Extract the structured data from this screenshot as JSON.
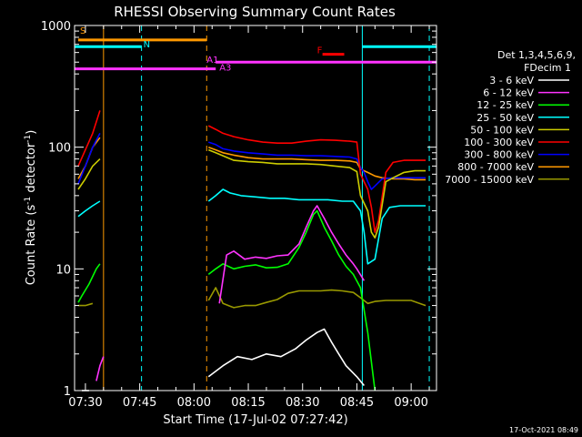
{
  "chart_data": {
    "type": "line",
    "title": "RHESSI Observing Summary Count Rates",
    "xlabel": "Start Time (17-Jul-02 07:27:42)",
    "ylabel_main": "Count Rate (s",
    "ylabel_sup1": "-1",
    "ylabel_mid": " detector",
    "ylabel_sup2": "-1",
    "ylabel_end": ")",
    "y_scale": "log",
    "ylim": [
      1,
      1000
    ],
    "xlim_minutes": [
      -3,
      97
    ],
    "x_ticks": [
      {
        "label": "07:30",
        "value": 0
      },
      {
        "label": "07:45",
        "value": 15
      },
      {
        "label": "08:00",
        "value": 30
      },
      {
        "label": "08:15",
        "value": 45
      },
      {
        "label": "08:30",
        "value": 60
      },
      {
        "label": "08:45",
        "value": 75
      },
      {
        "label": "09:00",
        "value": 90
      }
    ],
    "y_ticks": [
      {
        "label": "1",
        "value": 1
      },
      {
        "label": "10",
        "value": 10
      },
      {
        "label": "100",
        "value": 100
      },
      {
        "label": "1000",
        "value": 1000
      }
    ],
    "legend": {
      "header1": "Det 1,3,4,5,6,9,",
      "header2": "FDecim 1",
      "placement": "right"
    },
    "series": [
      {
        "name": "3 - 6 keV",
        "color": "#ffffff",
        "segments": [
          [
            [
              -1,
              1
            ],
            [
              0,
              1
            ],
            [
              1,
              1
            ]
          ],
          [
            [
              34,
              1.3
            ],
            [
              38,
              1.6
            ],
            [
              42,
              1.9
            ],
            [
              46,
              1.8
            ],
            [
              50,
              2.0
            ],
            [
              54,
              1.9
            ],
            [
              58,
              2.2
            ],
            [
              61,
              2.6
            ],
            [
              64,
              3.0
            ],
            [
              66,
              3.2
            ],
            [
              68,
              2.5
            ],
            [
              70,
              2.0
            ],
            [
              72,
              1.6
            ],
            [
              75,
              1.3
            ],
            [
              77,
              1.1
            ]
          ]
        ]
      },
      {
        "name": "6 - 12 keV",
        "color": "#ff33ff",
        "segments": [
          [
            [
              3,
              1.2
            ],
            [
              4,
              1.6
            ],
            [
              5,
              1.9
            ]
          ],
          [
            [
              37,
              5.2
            ],
            [
              39,
              13
            ],
            [
              41,
              14
            ],
            [
              44,
              12
            ],
            [
              47,
              12.5
            ],
            [
              50,
              12.2
            ],
            [
              53,
              12.8
            ],
            [
              56,
              13
            ],
            [
              59,
              16
            ],
            [
              61,
              22
            ],
            [
              63,
              30
            ],
            [
              64,
              33
            ],
            [
              66,
              26
            ],
            [
              68,
              20
            ],
            [
              70,
              16
            ],
            [
              72,
              13
            ],
            [
              74,
              11
            ],
            [
              75,
              10
            ],
            [
              77,
              8
            ]
          ]
        ]
      },
      {
        "name": "12 - 25 keV",
        "color": "#00ff00",
        "segments": [
          [
            [
              -2,
              5.3
            ],
            [
              -1,
              6
            ],
            [
              1,
              7.5
            ],
            [
              3,
              10
            ],
            [
              4,
              11
            ]
          ],
          [
            [
              34,
              9
            ],
            [
              36,
              10
            ],
            [
              38,
              11
            ],
            [
              41,
              10
            ],
            [
              44,
              10.5
            ],
            [
              47,
              10.8
            ],
            [
              50,
              10.2
            ],
            [
              53,
              10.3
            ],
            [
              56,
              11
            ],
            [
              59,
              15
            ],
            [
              61,
              20
            ],
            [
              63,
              28
            ],
            [
              64,
              30
            ],
            [
              66,
              22
            ],
            [
              68,
              17
            ],
            [
              70,
              13
            ],
            [
              72,
              10.5
            ],
            [
              74,
              9
            ],
            [
              76,
              7
            ],
            [
              78,
              3
            ],
            [
              80,
              1
            ]
          ]
        ]
      },
      {
        "name": "25 - 50 keV",
        "color": "#00ffff",
        "segments": [
          [
            [
              -2,
              27
            ],
            [
              0,
              30
            ],
            [
              2,
              33
            ],
            [
              4,
              36
            ]
          ],
          [
            [
              34,
              36
            ],
            [
              36,
              40
            ],
            [
              38,
              45
            ],
            [
              40,
              42
            ],
            [
              43,
              40
            ],
            [
              47,
              39
            ],
            [
              51,
              38
            ],
            [
              55,
              38
            ],
            [
              59,
              37
            ],
            [
              63,
              37
            ],
            [
              67,
              37
            ],
            [
              71,
              36
            ],
            [
              74,
              36
            ],
            [
              76,
              30
            ],
            [
              77,
              20
            ],
            [
              78,
              11
            ],
            [
              80,
              12
            ],
            [
              82,
              26
            ],
            [
              84,
              32
            ],
            [
              87,
              33
            ],
            [
              90,
              33
            ],
            [
              94,
              33
            ]
          ]
        ]
      },
      {
        "name": "50 - 100 keV",
        "color": "#cccc00",
        "segments": [
          [
            [
              -2,
              45
            ],
            [
              0,
              55
            ],
            [
              2,
              70
            ],
            [
              4,
              80
            ]
          ],
          [
            [
              34,
              95
            ],
            [
              36,
              90
            ],
            [
              38,
              85
            ],
            [
              41,
              78
            ],
            [
              45,
              76
            ],
            [
              49,
              75
            ],
            [
              53,
              73
            ],
            [
              57,
              73
            ],
            [
              61,
              73
            ],
            [
              65,
              72
            ],
            [
              69,
              70
            ],
            [
              73,
              68
            ],
            [
              75,
              63
            ],
            [
              76,
              40
            ],
            [
              78,
              30
            ],
            [
              79,
              20
            ],
            [
              80,
              18
            ],
            [
              81,
              22
            ],
            [
              83,
              52
            ],
            [
              85,
              56
            ],
            [
              88,
              62
            ],
            [
              91,
              64
            ],
            [
              94,
              64
            ]
          ]
        ]
      },
      {
        "name": "100 - 300 keV",
        "color": "#ff0000",
        "segments": [
          [
            [
              -2,
              70
            ],
            [
              0,
              95
            ],
            [
              2,
              130
            ],
            [
              4,
              200
            ]
          ],
          [
            [
              34,
              150
            ],
            [
              36,
              140
            ],
            [
              38,
              130
            ],
            [
              41,
              122
            ],
            [
              45,
              115
            ],
            [
              49,
              110
            ],
            [
              53,
              108
            ],
            [
              57,
              108
            ],
            [
              61,
              112
            ],
            [
              65,
              115
            ],
            [
              69,
              114
            ],
            [
              73,
              112
            ],
            [
              75,
              110
            ],
            [
              76,
              60
            ],
            [
              78,
              45
            ],
            [
              79,
              32
            ],
            [
              80,
              20
            ],
            [
              81,
              25
            ],
            [
              83,
              62
            ],
            [
              85,
              75
            ],
            [
              88,
              78
            ],
            [
              91,
              78
            ],
            [
              94,
              78
            ]
          ]
        ]
      },
      {
        "name": "300 - 800 keV",
        "color": "#0000ff",
        "segments": [
          [
            [
              -2,
              50
            ],
            [
              0,
              70
            ],
            [
              2,
              100
            ],
            [
              4,
              130
            ]
          ],
          [
            [
              34,
              110
            ],
            [
              36,
              105
            ],
            [
              38,
              97
            ],
            [
              41,
              93
            ],
            [
              45,
              90
            ],
            [
              49,
              88
            ],
            [
              53,
              86
            ],
            [
              57,
              86
            ],
            [
              61,
              85
            ],
            [
              65,
              85
            ],
            [
              69,
              84
            ],
            [
              73,
              83
            ],
            [
              75,
              80
            ],
            [
              76,
              68
            ],
            [
              77,
              62
            ],
            [
              78,
              52
            ],
            [
              79,
              45
            ],
            [
              80,
              48
            ],
            [
              82,
              55
            ],
            [
              85,
              56
            ],
            [
              88,
              56
            ],
            [
              91,
              56
            ],
            [
              94,
              56
            ]
          ]
        ]
      },
      {
        "name": "800 - 7000 keV",
        "color": "#ff9900",
        "segments": [
          [
            [
              -2,
              55
            ],
            [
              0,
              70
            ],
            [
              2,
              100
            ],
            [
              4,
              120
            ]
          ],
          [
            [
              34,
              100
            ],
            [
              36,
              95
            ],
            [
              38,
              90
            ],
            [
              41,
              86
            ],
            [
              45,
              82
            ],
            [
              49,
              80
            ],
            [
              53,
              80
            ],
            [
              57,
              80
            ],
            [
              61,
              79
            ],
            [
              65,
              78
            ],
            [
              69,
              78
            ],
            [
              73,
              77
            ],
            [
              75,
              75
            ],
            [
              76,
              66
            ],
            [
              78,
              62
            ],
            [
              80,
              58
            ],
            [
              82,
              56
            ],
            [
              85,
              55
            ],
            [
              88,
              55
            ],
            [
              91,
              54
            ],
            [
              94,
              54
            ]
          ]
        ]
      },
      {
        "name": "7000 - 15000 keV",
        "color": "#999900",
        "segments": [
          [
            [
              -2,
              5.0
            ],
            [
              0,
              5.0
            ],
            [
              2,
              5.2
            ]
          ],
          [
            [
              34,
              5.5
            ],
            [
              36,
              7
            ],
            [
              38,
              5.2
            ],
            [
              41,
              4.8
            ],
            [
              44,
              5.0
            ],
            [
              47,
              5.0
            ],
            [
              50,
              5.3
            ],
            [
              53,
              5.6
            ],
            [
              56,
              6.3
            ],
            [
              59,
              6.6
            ],
            [
              62,
              6.6
            ],
            [
              65,
              6.6
            ],
            [
              68,
              6.7
            ],
            [
              71,
              6.6
            ],
            [
              74,
              6.4
            ],
            [
              76,
              5.8
            ],
            [
              78,
              5.2
            ],
            [
              80,
              5.4
            ],
            [
              83,
              5.5
            ],
            [
              86,
              5.5
            ],
            [
              90,
              5.5
            ],
            [
              94,
              5.0
            ]
          ]
        ]
      }
    ],
    "solid_vlines": [
      {
        "x": 5,
        "color": "#ff9900"
      },
      {
        "x": 76.5,
        "color": "#00ffff"
      }
    ],
    "dashed_vlines": [
      {
        "x": 15.5,
        "color": "#00ffff"
      },
      {
        "x": 33.5,
        "color": "#ff9900"
      },
      {
        "x": 95,
        "color": "#00ffff"
      }
    ],
    "flag_bars": [
      {
        "label": "S",
        "color": "#ff9900",
        "x0": -2,
        "x1": 33.5,
        "y": 760,
        "label_x": -1.5,
        "label_y": 860
      },
      {
        "label": "N",
        "color": "#00ffff",
        "x0": -3,
        "x1": 15.5,
        "y": 670,
        "label_x": 16,
        "label_y": 660
      },
      {
        "label": "",
        "color": "#00ffff",
        "x0": 76.5,
        "x1": 97,
        "y": 670,
        "label_x": 0,
        "label_y": 0
      },
      {
        "label": "F",
        "color": "#ff0000",
        "x0": 65.5,
        "x1": 71.5,
        "y": 580,
        "label_x": 64,
        "label_y": 590
      },
      {
        "label": "A1",
        "color": "#ff33ff",
        "x0": 36,
        "x1": 97,
        "y": 500,
        "label_x": 33.5,
        "label_y": 495
      },
      {
        "label": "A3",
        "color": "#ff33ff",
        "x0": -3,
        "x1": 36,
        "y": 440,
        "label_x": 37,
        "label_y": 425
      }
    ],
    "footer_timestamp": "17-Oct-2021 08:49"
  }
}
